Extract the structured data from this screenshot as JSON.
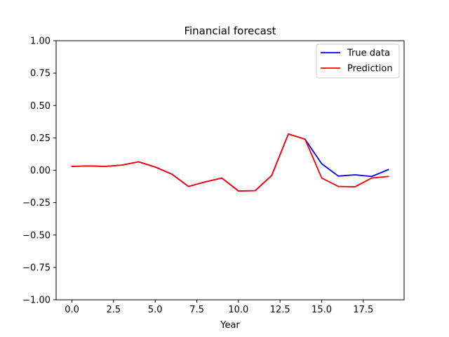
{
  "chart_data": {
    "type": "line",
    "title": "Financial forecast",
    "xlabel": "Year",
    "ylabel": "",
    "xlim": [
      -0.95,
      19.95
    ],
    "ylim": [
      -1.0,
      1.0
    ],
    "xticks": [
      0.0,
      2.5,
      5.0,
      7.5,
      10.0,
      12.5,
      15.0,
      17.5
    ],
    "xtick_labels": [
      "0.0",
      "2.5",
      "5.0",
      "7.5",
      "10.0",
      "12.5",
      "15.0",
      "17.5"
    ],
    "yticks": [
      -1.0,
      -0.75,
      -0.5,
      -0.25,
      0.0,
      0.25,
      0.5,
      0.75,
      1.0
    ],
    "ytick_labels": [
      "−1.00",
      "−0.75",
      "−0.50",
      "−0.25",
      "0.00",
      "0.25",
      "0.50",
      "0.75",
      "1.00"
    ],
    "grid": false,
    "legend_position": "top-right",
    "x": [
      0,
      1,
      2,
      3,
      4,
      5,
      6,
      7,
      8,
      9,
      10,
      11,
      12,
      13,
      14,
      15,
      16,
      17,
      18,
      19
    ],
    "series": [
      {
        "name": "True data",
        "color": "#0000ff",
        "values": [
          0.03,
          0.033,
          0.03,
          0.04,
          0.065,
          0.025,
          -0.03,
          -0.125,
          -0.09,
          -0.06,
          -0.16,
          -0.158,
          -0.04,
          0.28,
          0.24,
          0.05,
          -0.045,
          -0.035,
          -0.048,
          0.005
        ]
      },
      {
        "name": "Prediction",
        "color": "#ff0000",
        "values": [
          0.03,
          0.033,
          0.03,
          0.04,
          0.065,
          0.025,
          -0.03,
          -0.125,
          -0.09,
          -0.06,
          -0.16,
          -0.158,
          -0.04,
          0.28,
          0.24,
          -0.06,
          -0.125,
          -0.128,
          -0.06,
          -0.048
        ]
      }
    ]
  }
}
